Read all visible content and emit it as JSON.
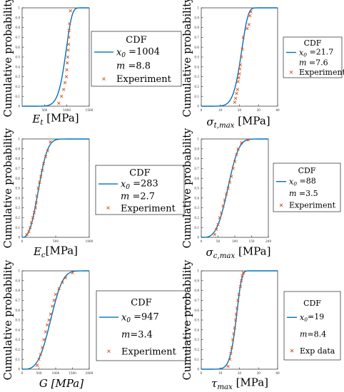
{
  "ylabel": "Cumulative probability",
  "colors": {
    "cdf": "#0072BD",
    "experiment": "#D95319",
    "axis": "#262626"
  },
  "yticks": [
    "0",
    "0.1",
    "0.2",
    "0.3",
    "0.4",
    "0.5",
    "0.6",
    "0.7",
    "0.8",
    "0.9",
    "1"
  ],
  "chart_data": [
    {
      "type": "scatter",
      "xlabel": "E_t [MPa]",
      "ylabel": "Cumulative probability",
      "xlim": [
        0,
        1500
      ],
      "ylim": [
        0,
        1
      ],
      "xticks": [
        "500",
        "1000",
        "1500"
      ],
      "legend": {
        "title": "CDF",
        "entries": [
          "x0 =1004",
          "m =8.8",
          "Experiment"
        ]
      },
      "weibull": {
        "x0": 1004,
        "m": 8.8
      },
      "series": [
        {
          "name": "Experiment",
          "x": [
            820,
            880,
            930,
            960,
            990,
            1000,
            1010,
            1020,
            1030,
            1040,
            1045,
            1050,
            1060,
            1080
          ],
          "y": [
            0.03,
            0.1,
            0.17,
            0.24,
            0.3,
            0.37,
            0.44,
            0.5,
            0.57,
            0.63,
            0.7,
            0.77,
            0.84,
            0.97
          ]
        }
      ]
    },
    {
      "type": "scatter",
      "xlabel": "σ_t,max [MPa]",
      "ylabel": "Cumulative probability",
      "xlim": [
        0,
        40
      ],
      "ylim": [
        0,
        1
      ],
      "xticks": [
        "0",
        "10",
        "20",
        "30",
        "40"
      ],
      "legend": {
        "title": "CDF",
        "entries": [
          "x0 =21.7",
          "m =7.6",
          "Experiment"
        ]
      },
      "weibull": {
        "x0": 21.7,
        "m": 7.6
      },
      "series": [
        {
          "name": "Experiment",
          "x": [
            17.5,
            18.0,
            18.5,
            19.0,
            19.3,
            19.6,
            20.0,
            20.2,
            20.5,
            21.0,
            21.5,
            22.0,
            24.0,
            25.0,
            25.5,
            26.0
          ],
          "y": [
            0.04,
            0.08,
            0.13,
            0.17,
            0.25,
            0.29,
            0.33,
            0.38,
            0.42,
            0.5,
            0.58,
            0.7,
            0.79,
            0.83,
            0.92,
            0.96
          ]
        }
      ]
    },
    {
      "type": "scatter",
      "xlabel": "E_c[MPa]",
      "ylabel": "Cumulative probability",
      "xlim": [
        0,
        1000
      ],
      "ylim": [
        0,
        1
      ],
      "xticks": [
        "0",
        "500",
        "1000"
      ],
      "legend": {
        "title": "CDF",
        "entries": [
          "x0 =283",
          "m =2.7",
          "Experiment"
        ]
      },
      "weibull": {
        "x0": 283,
        "m": 2.7
      },
      "series": [
        {
          "name": "Experiment",
          "x": [
            70,
            100,
            120,
            140,
            160,
            180,
            200,
            210,
            220,
            240,
            260,
            280,
            300,
            320,
            350,
            380,
            420
          ],
          "y": [
            0.03,
            0.06,
            0.1,
            0.15,
            0.2,
            0.25,
            0.3,
            0.35,
            0.42,
            0.5,
            0.56,
            0.62,
            0.68,
            0.75,
            0.82,
            0.88,
            0.97
          ]
        }
      ]
    },
    {
      "type": "scatter",
      "xlabel": "σ_c,max [MPa]",
      "ylabel": "Cumulative probability",
      "xlim": [
        0,
        200
      ],
      "ylim": [
        0,
        1
      ],
      "xticks": [
        "0",
        "50",
        "100",
        "150",
        "200"
      ],
      "legend": {
        "title": "CDF",
        "entries": [
          "x0 =88",
          "m =3.5",
          "Experiment"
        ]
      },
      "weibull": {
        "x0": 88,
        "m": 3.5
      },
      "series": [
        {
          "name": "Experiment",
          "x": [
            40,
            45,
            50,
            55,
            60,
            65,
            70,
            75,
            80,
            85,
            90,
            95,
            100,
            105,
            110,
            120,
            140
          ],
          "y": [
            0.03,
            0.08,
            0.13,
            0.2,
            0.25,
            0.32,
            0.38,
            0.44,
            0.5,
            0.56,
            0.62,
            0.7,
            0.77,
            0.84,
            0.9,
            0.96,
            0.99
          ]
        }
      ]
    },
    {
      "type": "scatter",
      "xlabel": "G [MPa]",
      "ylabel": "Cumulative probability",
      "xlim": [
        0,
        2000
      ],
      "ylim": [
        0,
        1
      ],
      "xticks": [
        "0",
        "500",
        "1000",
        "1500",
        "2000"
      ],
      "legend": {
        "title": "CDF",
        "entries": [
          "x0 =947",
          "m=3.4",
          "Experiment"
        ]
      },
      "weibull": {
        "x0": 947,
        "m": 3.4
      },
      "series": [
        {
          "name": "Experiment",
          "x": [
            450,
            500,
            550,
            600,
            650,
            700,
            750,
            800,
            850,
            900,
            950,
            1000,
            1100,
            1200,
            1300,
            1500
          ],
          "y": [
            0.04,
            0.1,
            0.15,
            0.22,
            0.3,
            0.38,
            0.45,
            0.5,
            0.56,
            0.64,
            0.7,
            0.76,
            0.82,
            0.88,
            0.93,
            0.98
          ]
        }
      ]
    },
    {
      "type": "scatter",
      "xlabel": "τ_max [MPa]",
      "ylabel": "Cumulative probability",
      "xlim": [
        0,
        40
      ],
      "ylim": [
        0,
        1
      ],
      "xticks": [
        "0",
        "10",
        "20",
        "30",
        "40"
      ],
      "legend": {
        "title": "CDF",
        "entries": [
          "x0=19",
          "m=8.4",
          "Exp data"
        ]
      },
      "weibull": {
        "x0": 19,
        "m": 8.4
      },
      "series": [
        {
          "name": "Exp data",
          "x": [
            14.0,
            15.0,
            15.5,
            16.0,
            16.5,
            17.0,
            17.5,
            18.0,
            18.3,
            18.7,
            19.2,
            19.7,
            20.5,
            21.0,
            21.5,
            22.0
          ],
          "y": [
            0.03,
            0.1,
            0.16,
            0.22,
            0.3,
            0.36,
            0.42,
            0.5,
            0.56,
            0.62,
            0.7,
            0.76,
            0.84,
            0.9,
            0.95,
            0.98
          ]
        }
      ]
    }
  ]
}
